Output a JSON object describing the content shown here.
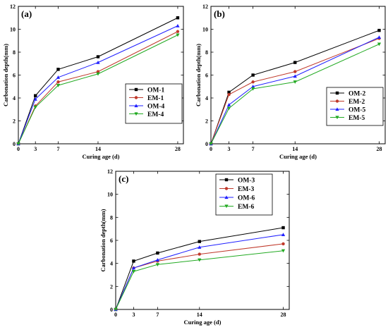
{
  "colors": {
    "OM": "#000000",
    "EM": "#c0392b",
    "OM2": "#1f1fff",
    "EM2": "#22aa22"
  },
  "chart_data": [
    {
      "type": "line",
      "panel_label": "(a)",
      "xlabel": "Curing age (d)",
      "ylabel": "Carbonation depth(mm)",
      "x": [
        0,
        3,
        7,
        14,
        28
      ],
      "x_ticks": [
        0,
        3,
        7,
        14,
        28
      ],
      "xlim": [
        0,
        29
      ],
      "ylim": [
        0,
        12
      ],
      "y_ticks": [
        0,
        2,
        4,
        6,
        8,
        10,
        12
      ],
      "legend_position": "right",
      "series": [
        {
          "name": "OM-1",
          "values": [
            0,
            4.2,
            6.5,
            7.6,
            11.0
          ],
          "color": "#000000",
          "marker": "square"
        },
        {
          "name": "EM-1",
          "values": [
            0,
            3.3,
            5.4,
            6.3,
            9.8
          ],
          "color": "#c0392b",
          "marker": "circle"
        },
        {
          "name": "OM-4",
          "values": [
            0,
            3.9,
            5.8,
            7.1,
            10.3
          ],
          "color": "#1f1fff",
          "marker": "triangle-up"
        },
        {
          "name": "EM-4",
          "values": [
            0,
            3.2,
            5.1,
            6.1,
            9.5
          ],
          "color": "#22aa22",
          "marker": "triangle-down"
        }
      ]
    },
    {
      "type": "line",
      "panel_label": "(b)",
      "xlabel": "Curing age (d)",
      "ylabel": "Carbonation depth(mm)",
      "x": [
        0,
        3,
        7,
        14,
        28
      ],
      "x_ticks": [
        0,
        3,
        7,
        14,
        28
      ],
      "xlim": [
        0,
        29
      ],
      "ylim": [
        0,
        12
      ],
      "y_ticks": [
        0,
        2,
        4,
        6,
        8,
        10,
        12
      ],
      "legend_position": "bottom-right",
      "series": [
        {
          "name": "OM-2",
          "values": [
            0,
            4.5,
            6.0,
            7.1,
            9.9
          ],
          "color": "#000000",
          "marker": "square"
        },
        {
          "name": "EM-2",
          "values": [
            0,
            4.3,
            5.4,
            6.3,
            9.2
          ],
          "color": "#c0392b",
          "marker": "circle"
        },
        {
          "name": "OM-5",
          "values": [
            0,
            3.4,
            5.0,
            5.9,
            9.3
          ],
          "color": "#1f1fff",
          "marker": "triangle-up"
        },
        {
          "name": "EM-5",
          "values": [
            0,
            3.1,
            4.8,
            5.4,
            8.7
          ],
          "color": "#22aa22",
          "marker": "triangle-down"
        }
      ]
    },
    {
      "type": "line",
      "panel_label": "(c)",
      "xlabel": "Curing age (d)",
      "ylabel": "Carbonation depth(mm)",
      "x": [
        0,
        3,
        7,
        14,
        28
      ],
      "x_ticks": [
        0,
        3,
        7,
        14,
        28
      ],
      "xlim": [
        0,
        29
      ],
      "ylim": [
        0,
        12
      ],
      "y_ticks": [
        0,
        2,
        4,
        6,
        8,
        10,
        12
      ],
      "legend_position": "top-right",
      "series": [
        {
          "name": "OM-3",
          "values": [
            0,
            4.2,
            4.9,
            5.9,
            7.1
          ],
          "color": "#000000",
          "marker": "square"
        },
        {
          "name": "EM-3",
          "values": [
            0,
            3.6,
            4.2,
            4.8,
            5.7
          ],
          "color": "#c0392b",
          "marker": "circle"
        },
        {
          "name": "OM-6",
          "values": [
            0,
            3.6,
            4.3,
            5.4,
            6.5
          ],
          "color": "#1f1fff",
          "marker": "triangle-up"
        },
        {
          "name": "EM-6",
          "values": [
            0,
            3.3,
            3.9,
            4.3,
            5.1
          ],
          "color": "#22aa22",
          "marker": "triangle-down"
        }
      ]
    }
  ]
}
